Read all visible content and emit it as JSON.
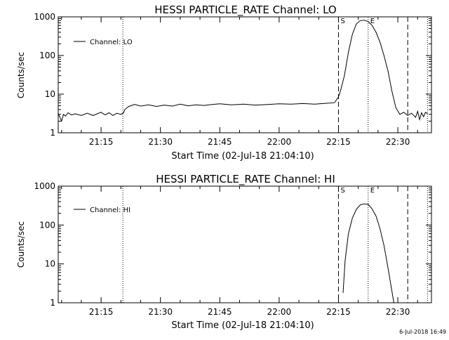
{
  "footer": {
    "date_stamp": "6-Jul-2018 16:49"
  },
  "chart_data": [
    {
      "type": "line",
      "title": "HESSI PARTICLE_RATE Channel: LO",
      "xlabel": "Start Time (02-Jul-18 21:04:10)",
      "ylabel": "Counts/sec",
      "y_scale": "log",
      "xlim": [
        "21:04:10",
        "22:38:30"
      ],
      "ylim": [
        1,
        1000
      ],
      "x_ticks": [
        "21:15",
        "21:30",
        "21:45",
        "22:00",
        "22:15",
        "22:30"
      ],
      "y_ticks": [
        "1",
        "10",
        "100",
        "1000"
      ],
      "legend": {
        "position": "top-left",
        "entries": [
          "Channel: LO"
        ]
      },
      "markers": [
        {
          "time": "21:20:30",
          "style": "dotted",
          "label": ""
        },
        {
          "time": "22:15:00",
          "style": "dashed",
          "label": "S"
        },
        {
          "time": "22:22:30",
          "style": "dotted",
          "label": "E"
        },
        {
          "time": "22:32:30",
          "style": "dashed",
          "label": ""
        },
        {
          "time": "22:37:30",
          "style": "dotted",
          "label": ""
        }
      ],
      "series": [
        {
          "name": "Channel: LO",
          "x": [
            "21:04:10",
            "21:05:00",
            "21:05:30",
            "21:06:00",
            "21:06:40",
            "21:07:30",
            "21:08:30",
            "21:10:00",
            "21:11:30",
            "21:13:00",
            "21:14:00",
            "21:15:00",
            "21:16:00",
            "21:17:00",
            "21:18:00",
            "21:19:00",
            "21:20:00",
            "21:20:40",
            "21:21:00",
            "21:22:00",
            "21:23:30",
            "21:25:00",
            "21:27:00",
            "21:29:00",
            "21:31:00",
            "21:33:00",
            "21:35:00",
            "21:37:00",
            "21:39:00",
            "21:41:00",
            "21:43:00",
            "21:45:00",
            "21:48:00",
            "21:51:00",
            "21:54:00",
            "21:57:00",
            "22:00:00",
            "22:03:00",
            "22:06:00",
            "22:09:00",
            "22:12:00",
            "22:14:00",
            "22:15:00",
            "22:15:30",
            "22:16:30",
            "22:17:30",
            "22:18:30",
            "22:19:30",
            "22:20:30",
            "22:21:30",
            "22:22:30",
            "22:23:30",
            "22:24:30",
            "22:25:30",
            "22:26:30",
            "22:27:30",
            "22:28:30",
            "22:29:30",
            "22:30:30",
            "22:31:30",
            "22:32:30",
            "22:33:30",
            "22:34:30",
            "22:35:00",
            "22:35:30",
            "22:36:00",
            "22:36:30",
            "22:37:00",
            "22:37:30"
          ],
          "y": [
            3.2,
            2.0,
            3.0,
            2.7,
            3.3,
            2.9,
            3.1,
            2.8,
            3.2,
            2.8,
            3.1,
            3.4,
            2.9,
            3.3,
            2.8,
            3.2,
            3.0,
            3.3,
            4.0,
            4.8,
            5.4,
            4.9,
            5.3,
            4.8,
            5.2,
            4.9,
            5.5,
            5.0,
            5.3,
            5.1,
            5.4,
            5.6,
            5.3,
            5.5,
            5.2,
            5.4,
            5.6,
            5.5,
            5.7,
            5.5,
            5.8,
            6.0,
            8.5,
            12,
            30,
            120,
            350,
            650,
            800,
            820,
            760,
            600,
            400,
            220,
            100,
            40,
            12,
            4.5,
            3.0,
            3.4,
            2.8,
            3.2,
            2.5,
            3.6,
            2.2,
            3.3,
            2.6,
            3.4,
            3.1
          ]
        }
      ]
    },
    {
      "type": "line",
      "title": "HESSI PARTICLE_RATE Channel: HI",
      "xlabel": "Start Time (02-Jul-18 21:04:10)",
      "ylabel": "Counts/sec",
      "y_scale": "log",
      "xlim": [
        "21:04:10",
        "22:38:30"
      ],
      "ylim": [
        1,
        1000
      ],
      "x_ticks": [
        "21:15",
        "21:30",
        "21:45",
        "22:00",
        "22:15",
        "22:30"
      ],
      "y_ticks": [
        "1",
        "10",
        "100",
        "1000"
      ],
      "legend": {
        "position": "top-left",
        "entries": [
          "Channel: HI"
        ]
      },
      "markers": [
        {
          "time": "21:20:30",
          "style": "dotted",
          "label": ""
        },
        {
          "time": "22:15:00",
          "style": "dashed",
          "label": "S"
        },
        {
          "time": "22:22:30",
          "style": "dotted",
          "label": "E"
        },
        {
          "time": "22:32:30",
          "style": "dashed",
          "label": ""
        },
        {
          "time": "22:37:30",
          "style": "dotted",
          "label": ""
        }
      ],
      "series": [
        {
          "name": "Channel: HI",
          "x": [
            "22:16:10",
            "22:16:40",
            "22:17:30",
            "22:18:30",
            "22:19:30",
            "22:20:30",
            "22:21:30",
            "22:22:30",
            "22:23:30",
            "22:24:30",
            "22:25:30",
            "22:26:30",
            "22:27:30",
            "22:28:30",
            "22:29:00"
          ],
          "y": [
            1.8,
            12,
            60,
            150,
            250,
            330,
            350,
            340,
            260,
            170,
            80,
            30,
            8,
            2,
            1
          ]
        }
      ]
    }
  ]
}
